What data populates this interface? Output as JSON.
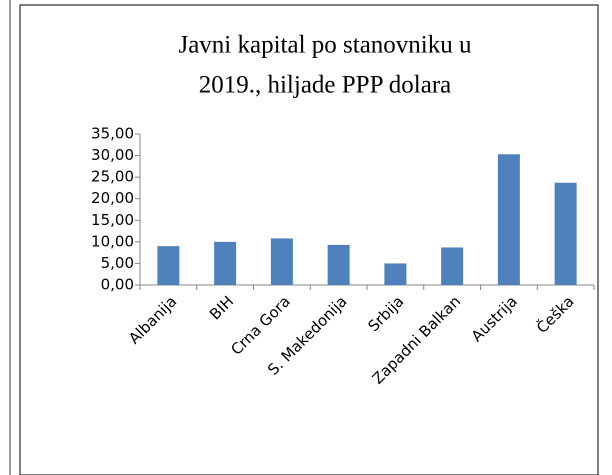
{
  "chart_data": {
    "type": "bar",
    "title_lines": [
      "Javni kapital po stanovniku u",
      "2019., hiljade PPP dolara"
    ],
    "categories": [
      "Albanija",
      "BIH",
      "Crna Gora",
      "S. Makedonija",
      "Srbija",
      "Zapadni Balkan",
      "Austrija",
      "Češka"
    ],
    "values": [
      9.0,
      10.0,
      10.8,
      9.3,
      5.0,
      8.7,
      30.3,
      23.7
    ],
    "color": "#4f81bd",
    "ylim": [
      0,
      35
    ],
    "yticks": [
      {
        "value": 0,
        "label": "0,00"
      },
      {
        "value": 5,
        "label": "5,00"
      },
      {
        "value": 10,
        "label": "10,00"
      },
      {
        "value": 15,
        "label": "15,00"
      },
      {
        "value": 20,
        "label": "20,00"
      },
      {
        "value": 25,
        "label": "25,00"
      },
      {
        "value": 30,
        "label": "30,00"
      },
      {
        "value": 35,
        "label": "35,00"
      }
    ],
    "grid": false
  }
}
